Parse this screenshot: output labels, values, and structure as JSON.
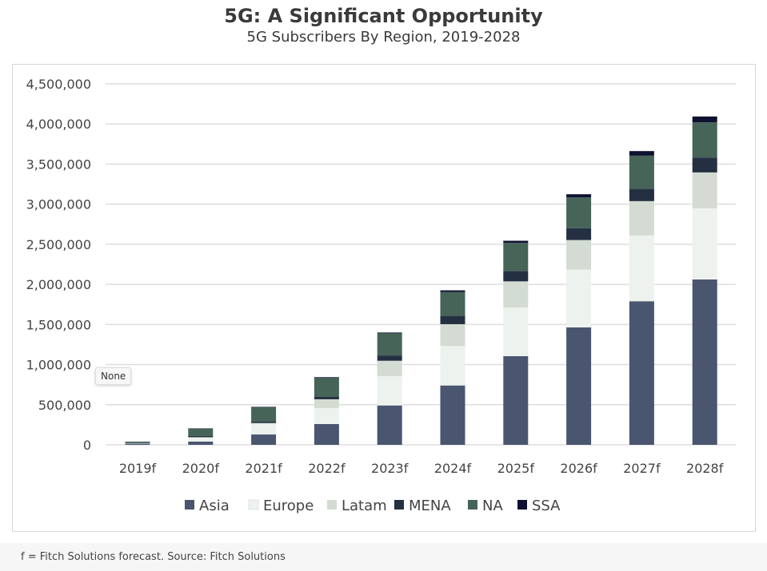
{
  "header": {
    "title": "5G: A Significant Opportunity",
    "subtitle": "5G Subscribers By Region, 2019-2028"
  },
  "tooltip": "None",
  "footer": "f = Fitch Solutions forecast. Source: Fitch Solutions",
  "chart_data": {
    "type": "bar",
    "stacked": true,
    "title": "5G: A Significant Opportunity",
    "subtitle": "5G Subscribers By Region, 2019-2028",
    "categories": [
      "2019f",
      "2020f",
      "2021f",
      "2022f",
      "2023f",
      "2024f",
      "2025f",
      "2026f",
      "2027f",
      "2028f"
    ],
    "ylim": [
      0,
      4500000
    ],
    "yticks": [
      0,
      500000,
      1000000,
      1500000,
      2000000,
      2500000,
      3000000,
      3500000,
      4000000,
      4500000
    ],
    "ytick_labels": [
      "0",
      "500,000",
      "1,000,000",
      "1,500,000",
      "2,000,000",
      "2,500,000",
      "3,000,000",
      "3,500,000",
      "4,000,000",
      "4,500,000"
    ],
    "grid": true,
    "legend_position": "bottom",
    "series": [
      {
        "name": "Asia",
        "color": "#4a5570",
        "values": [
          15000,
          40000,
          129000,
          259000,
          491000,
          740000,
          1105000,
          1464000,
          1790000,
          2062000
        ]
      },
      {
        "name": "Europe",
        "color": "#edf2ee",
        "values": [
          5000,
          50000,
          133000,
          199000,
          365000,
          492000,
          608000,
          720000,
          820000,
          886000
        ]
      },
      {
        "name": "Latam",
        "color": "#d3dbd2",
        "values": [
          2000,
          5000,
          10000,
          110000,
          192000,
          272000,
          325000,
          369000,
          428000,
          448000
        ]
      },
      {
        "name": "MENA",
        "color": "#243042",
        "values": [
          3000,
          15000,
          17000,
          33000,
          66000,
          103000,
          130000,
          146000,
          152000,
          186000
        ]
      },
      {
        "name": "NA",
        "color": "#466458",
        "values": [
          15000,
          90000,
          180000,
          232000,
          276000,
          299000,
          349000,
          385000,
          415000,
          438000
        ]
      },
      {
        "name": "SSA",
        "color": "#0e1230",
        "values": [
          0,
          5000,
          5000,
          10000,
          10000,
          20000,
          27000,
          40000,
          57000,
          73000
        ]
      }
    ]
  }
}
